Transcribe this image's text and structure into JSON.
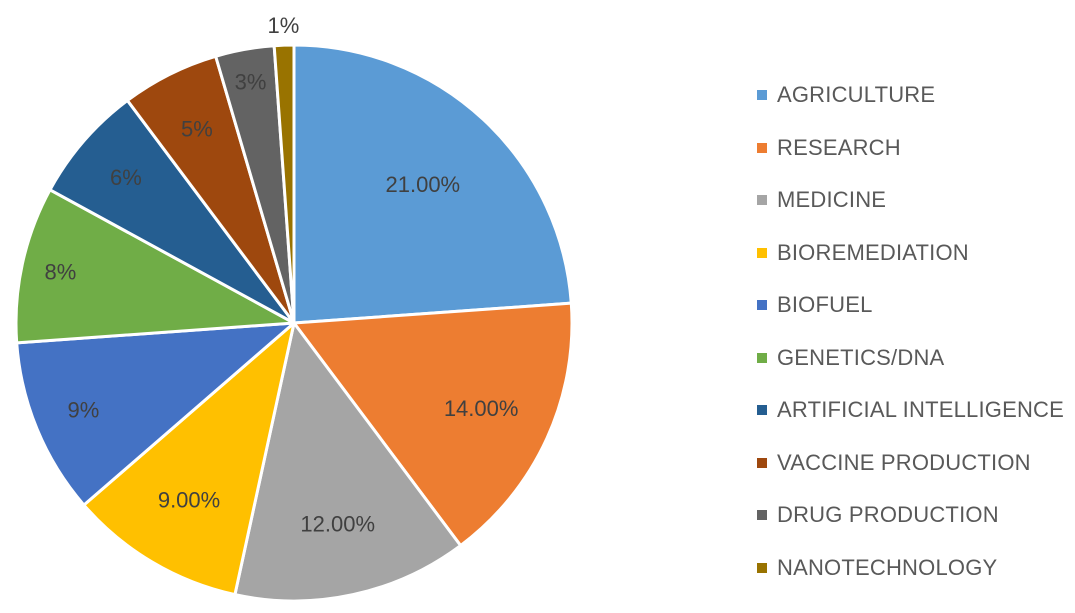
{
  "chart_data": {
    "type": "pie",
    "title": "",
    "legend_position": "right",
    "slices": [
      {
        "name": "AGRICULTURE",
        "value": 21,
        "label": "21.00%",
        "color": "#5B9BD5"
      },
      {
        "name": "RESEARCH",
        "value": 14,
        "label": "14.00%",
        "color": "#ED7D31"
      },
      {
        "name": "MEDICINE",
        "value": 12,
        "label": "12.00%",
        "color": "#A5A5A5"
      },
      {
        "name": "BIOREMEDIATION",
        "value": 9,
        "label": "9.00%",
        "color": "#FFC000"
      },
      {
        "name": "BIOFUEL",
        "value": 9,
        "label": "9%",
        "color": "#4472C4"
      },
      {
        "name": "GENETICS/DNA",
        "value": 8,
        "label": "8%",
        "color": "#70AD47"
      },
      {
        "name": "ARTIFICIAL INTELLIGENCE",
        "value": 6,
        "label": "6%",
        "color": "#255E91"
      },
      {
        "name": "VACCINE PRODUCTION",
        "value": 5,
        "label": "5%",
        "color": "#9E480E"
      },
      {
        "name": "DRUG PRODUCTION",
        "value": 3,
        "label": "3%",
        "color": "#636363"
      },
      {
        "name": "NANOTECHNOLOGY",
        "value": 1,
        "label": "1%",
        "color": "#997300"
      }
    ]
  }
}
